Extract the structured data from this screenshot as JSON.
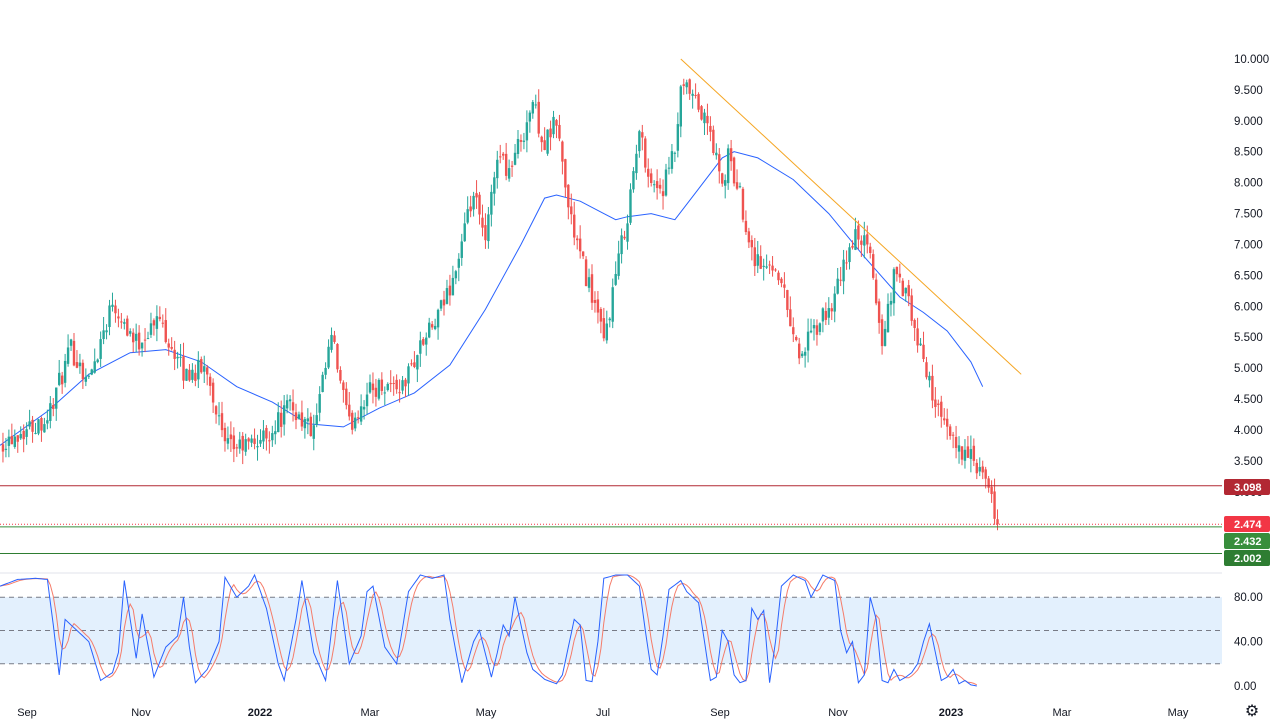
{
  "chart_data": [
    {
      "type": "candlestick",
      "x_labels": [
        "Sep",
        "Nov",
        "2022",
        "Mar",
        "May",
        "Jul",
        "Sep",
        "Nov",
        "2023",
        "Mar",
        "May"
      ],
      "x_labels_bold": [
        "2022",
        "2023"
      ],
      "y_ticks": [
        "10.000",
        "9.500",
        "9.000",
        "8.500",
        "8.000",
        "7.500",
        "7.000",
        "6.500",
        "6.000",
        "5.500",
        "5.000",
        "4.500",
        "4.000",
        "3.500",
        "3.000"
      ],
      "ylim": [
        2.0,
        10.0
      ],
      "close_path": [
        [
          0,
          3.8
        ],
        [
          8,
          4.2
        ],
        [
          12,
          5.3
        ],
        [
          15,
          4.8
        ],
        [
          19,
          6.1
        ],
        [
          23,
          5.4
        ],
        [
          27,
          5.8
        ],
        [
          31,
          4.9
        ],
        [
          35,
          5.0
        ],
        [
          38,
          3.7
        ],
        [
          42,
          3.75
        ],
        [
          45,
          3.9
        ],
        [
          49,
          4.4
        ],
        [
          53,
          3.95
        ],
        [
          56,
          5.5
        ],
        [
          59,
          4.05
        ],
        [
          62,
          4.6
        ],
        [
          65,
          4.75
        ],
        [
          68,
          4.7
        ],
        [
          71,
          5.35
        ],
        [
          74,
          5.8
        ],
        [
          77,
          6.6
        ],
        [
          80,
          7.8
        ],
        [
          82,
          7.0
        ],
        [
          84,
          8.5
        ],
        [
          86,
          8.2
        ],
        [
          88,
          8.7
        ],
        [
          90,
          9.3
        ],
        [
          92,
          8.6
        ],
        [
          94,
          9.0
        ],
        [
          96,
          7.6
        ],
        [
          98,
          6.8
        ],
        [
          100,
          6.2
        ],
        [
          102,
          5.4
        ],
        [
          104,
          6.5
        ],
        [
          106,
          7.5
        ],
        [
          108,
          8.8
        ],
        [
          110,
          8.0
        ],
        [
          112,
          7.9
        ],
        [
          114,
          8.5
        ],
        [
          115,
          9.4
        ],
        [
          116,
          9.5
        ],
        [
          118,
          9.2
        ],
        [
          120,
          8.8
        ],
        [
          122,
          7.9
        ],
        [
          123,
          8.4
        ],
        [
          125,
          7.8
        ],
        [
          127,
          6.9
        ],
        [
          129,
          6.6
        ],
        [
          131,
          6.7
        ],
        [
          133,
          6.0
        ],
        [
          135,
          5.2
        ],
        [
          137,
          5.5
        ],
        [
          139,
          5.8
        ],
        [
          141,
          6.1
        ],
        [
          143,
          6.8
        ],
        [
          145,
          7.2
        ],
        [
          147,
          6.8
        ],
        [
          149,
          5.4
        ],
        [
          151,
          6.5
        ],
        [
          153,
          6.2
        ],
        [
          155,
          5.4
        ],
        [
          157,
          4.8
        ],
        [
          159,
          4.1
        ],
        [
          161,
          3.8
        ],
        [
          163,
          3.65
        ],
        [
          165,
          3.4
        ],
        [
          167,
          3.0
        ],
        [
          168.5,
          2.474
        ]
      ],
      "ma": [
        [
          0,
          3.75
        ],
        [
          8,
          4.3
        ],
        [
          15,
          4.9
        ],
        [
          22,
          5.25
        ],
        [
          28,
          5.3
        ],
        [
          34,
          5.1
        ],
        [
          40,
          4.7
        ],
        [
          46,
          4.45
        ],
        [
          52,
          4.1
        ],
        [
          58,
          4.05
        ],
        [
          64,
          4.35
        ],
        [
          70,
          4.6
        ],
        [
          76,
          5.05
        ],
        [
          82,
          5.95
        ],
        [
          88,
          7.0
        ],
        [
          92,
          7.75
        ],
        [
          94,
          7.8
        ],
        [
          98,
          7.7
        ],
        [
          102,
          7.5
        ],
        [
          104,
          7.4
        ],
        [
          106,
          7.45
        ],
        [
          110,
          7.5
        ],
        [
          114,
          7.4
        ],
        [
          118,
          7.9
        ],
        [
          122,
          8.4
        ],
        [
          124,
          8.5
        ],
        [
          128,
          8.4
        ],
        [
          134,
          8.05
        ],
        [
          140,
          7.5
        ],
        [
          146,
          6.8
        ],
        [
          152,
          6.15
        ],
        [
          156,
          5.9
        ],
        [
          160,
          5.6
        ],
        [
          164,
          5.1
        ],
        [
          166,
          4.7
        ]
      ],
      "trend_line": [
        [
          115,
          10.0
        ],
        [
          172.5,
          4.9
        ]
      ],
      "price_levels": [
        {
          "label": "3.098",
          "value": 3.098,
          "color": "#b22833",
          "style": "solid"
        },
        {
          "label": "2.474",
          "value": 2.474,
          "color": "#f23645",
          "style": "dotted"
        },
        {
          "label": "2.432",
          "value": 2.432,
          "color": "#388e3c",
          "style": "solid"
        },
        {
          "label": "2.002",
          "value": 2.002,
          "color": "#2e7d32",
          "style": "solid"
        }
      ],
      "colors": {
        "up": "#26a69a",
        "down": "#ef5350",
        "ma": "#2962ff",
        "trend": "#f5a623"
      }
    },
    {
      "type": "line",
      "name_hidden": "stochastic",
      "y_ticks": [
        "80.00",
        "40.00",
        "0.00"
      ],
      "ylim": [
        0,
        100
      ],
      "bands": [
        20,
        50,
        80
      ],
      "k_path": [
        [
          0,
          90
        ],
        [
          3,
          96
        ],
        [
          6,
          97
        ],
        [
          8,
          96
        ],
        [
          9,
          55
        ],
        [
          10,
          10
        ],
        [
          11,
          60
        ],
        [
          13,
          50
        ],
        [
          15,
          40
        ],
        [
          17,
          5
        ],
        [
          19,
          12
        ],
        [
          20,
          30
        ],
        [
          21,
          95
        ],
        [
          22,
          60
        ],
        [
          23,
          25
        ],
        [
          24,
          65
        ],
        [
          26,
          8
        ],
        [
          28,
          35
        ],
        [
          30,
          45
        ],
        [
          31,
          80
        ],
        [
          32,
          35
        ],
        [
          33,
          3
        ],
        [
          35,
          15
        ],
        [
          37,
          40
        ],
        [
          38,
          98
        ],
        [
          40,
          80
        ],
        [
          42,
          90
        ],
        [
          43,
          100
        ],
        [
          45,
          70
        ],
        [
          47,
          20
        ],
        [
          48,
          5
        ],
        [
          50,
          60
        ],
        [
          51,
          95
        ],
        [
          53,
          30
        ],
        [
          55,
          5
        ],
        [
          57,
          95
        ],
        [
          59,
          20
        ],
        [
          61,
          45
        ],
        [
          62,
          85
        ],
        [
          63,
          90
        ],
        [
          65,
          35
        ],
        [
          67,
          20
        ],
        [
          69,
          85
        ],
        [
          71,
          100
        ],
        [
          73,
          97
        ],
        [
          75,
          100
        ],
        [
          76,
          60
        ],
        [
          78,
          3
        ],
        [
          80,
          40
        ],
        [
          81,
          50
        ],
        [
          83,
          8
        ],
        [
          84,
          30
        ],
        [
          85,
          55
        ],
        [
          86,
          45
        ],
        [
          87,
          80
        ],
        [
          89,
          30
        ],
        [
          90,
          15
        ],
        [
          92,
          6
        ],
        [
          94,
          2
        ],
        [
          95,
          10
        ],
        [
          97,
          60
        ],
        [
          98,
          55
        ],
        [
          99,
          5
        ],
        [
          100,
          4
        ],
        [
          101,
          40
        ],
        [
          102,
          97
        ],
        [
          104,
          100
        ],
        [
          106,
          100
        ],
        [
          108,
          90
        ],
        [
          109,
          50
        ],
        [
          110,
          15
        ],
        [
          111,
          10
        ],
        [
          112,
          45
        ],
        [
          113,
          87
        ],
        [
          115,
          95
        ],
        [
          116,
          85
        ],
        [
          118,
          75
        ],
        [
          119,
          40
        ],
        [
          120,
          5
        ],
        [
          121,
          8
        ],
        [
          122,
          50
        ],
        [
          123,
          40
        ],
        [
          124,
          10
        ],
        [
          125,
          3
        ],
        [
          126,
          5
        ],
        [
          127,
          70
        ],
        [
          128,
          60
        ],
        [
          129,
          68
        ],
        [
          130,
          3
        ],
        [
          131,
          40
        ],
        [
          132,
          90
        ],
        [
          134,
          100
        ],
        [
          136,
          95
        ],
        [
          137,
          80
        ],
        [
          139,
          100
        ],
        [
          141,
          95
        ],
        [
          142,
          50
        ],
        [
          143,
          30
        ],
        [
          144,
          40
        ],
        [
          145,
          3
        ],
        [
          146,
          10
        ],
        [
          147,
          80
        ],
        [
          148,
          60
        ],
        [
          149,
          5
        ],
        [
          150,
          3
        ],
        [
          151,
          15
        ],
        [
          152,
          5
        ],
        [
          153,
          8
        ],
        [
          154,
          12
        ],
        [
          155,
          20
        ],
        [
          156,
          40
        ],
        [
          157,
          56
        ],
        [
          158,
          30
        ],
        [
          159,
          5
        ],
        [
          160,
          8
        ],
        [
          161,
          15
        ],
        [
          162,
          2
        ],
        [
          163,
          5
        ],
        [
          164,
          1
        ],
        [
          165,
          0
        ]
      ],
      "colors": {
        "k": "#2962ff",
        "d": "#f57c6a",
        "band_fill": "#e3f0fd",
        "band_line": "#787b86"
      }
    }
  ]
}
